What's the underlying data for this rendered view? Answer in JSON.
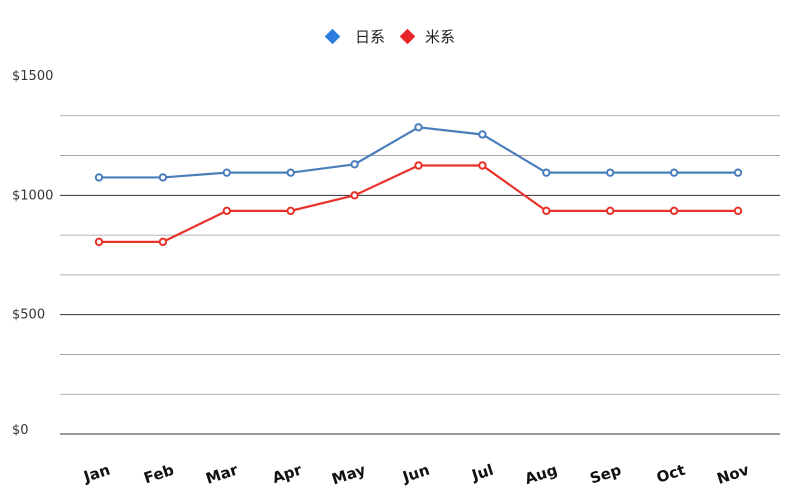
{
  "chart_data": {
    "type": "line",
    "categories": [
      "Jan",
      "Feb",
      "Mar",
      "Apr",
      "May",
      "Jun",
      "Jul",
      "Aug",
      "Sep",
      "Oct",
      "Nov"
    ],
    "series": [
      {
        "name": "日系",
        "color": "#4a7ebb",
        "values": [
          1075,
          1075,
          1095,
          1095,
          1130,
          1285,
          1255,
          1095,
          1095,
          1095,
          1095
        ]
      },
      {
        "name": "米系",
        "color": "#e8332c",
        "values": [
          805,
          805,
          935,
          935,
          1000,
          1125,
          1125,
          935,
          935,
          935,
          935
        ]
      }
    ],
    "y_ticks": [
      "$0",
      "$500",
      "$1000",
      "$1500"
    ],
    "y_tick_values": [
      0,
      500,
      1000,
      1500
    ],
    "ylim": [
      0,
      1500
    ],
    "legend_markers": [
      "#2b7de0",
      "#e8262a"
    ],
    "grid": true,
    "legend_position": "top-center"
  }
}
